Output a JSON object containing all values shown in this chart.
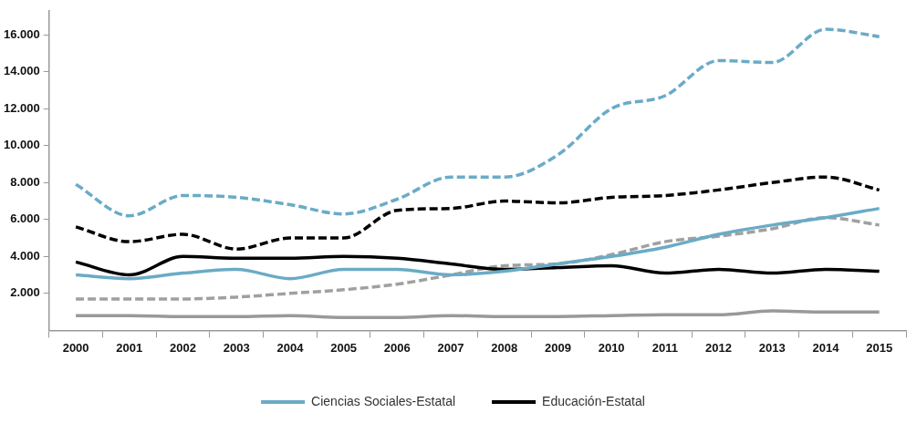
{
  "chart_data": {
    "type": "line",
    "categories": [
      "2000",
      "2001",
      "2002",
      "2003",
      "2004",
      "2005",
      "2006",
      "2007",
      "2008",
      "2009",
      "2010",
      "2011",
      "2012",
      "2013",
      "2014",
      "2015"
    ],
    "series": [
      {
        "color": "#6aabc6",
        "line_style": "dashed",
        "values": [
          7900,
          6200,
          7300,
          7200,
          6800,
          6300,
          7100,
          8300,
          8300,
          9500,
          12000,
          12700,
          14600,
          14500,
          16300,
          15900
        ]
      },
      {
        "color": "#000000",
        "line_style": "dashed",
        "values": [
          5600,
          4800,
          5200,
          4400,
          5000,
          5000,
          6500,
          6600,
          7000,
          6900,
          7200,
          7300,
          7600,
          8000,
          8300,
          7600
        ]
      },
      {
        "name": "Ciencias Sociales-Estatal",
        "color": "#6aabc6",
        "line_style": "solid",
        "values": [
          3000,
          2800,
          3100,
          3300,
          2800,
          3300,
          3300,
          3000,
          3200,
          3600,
          4000,
          4500,
          5200,
          5700,
          6100,
          6600
        ]
      },
      {
        "name": "Educación-Estatal",
        "color": "#000000",
        "line_style": "solid",
        "values": [
          3700,
          3000,
          4000,
          3900,
          3900,
          4000,
          3900,
          3600,
          3300,
          3400,
          3500,
          3100,
          3300,
          3100,
          3300,
          3200
        ]
      },
      {
        "color": "#a0a0a0",
        "line_style": "dashed",
        "values": [
          1700,
          1700,
          1700,
          1800,
          2000,
          2200,
          2500,
          3000,
          3500,
          3600,
          4100,
          4800,
          5100,
          5500,
          6100,
          5700
        ]
      },
      {
        "color": "#999999",
        "line_style": "solid",
        "values": [
          800,
          800,
          750,
          750,
          800,
          700,
          700,
          800,
          750,
          750,
          800,
          850,
          850,
          1050,
          1000,
          1000
        ]
      }
    ],
    "ylim": [
      0,
      17300
    ],
    "yticks": [
      {
        "value": 2000,
        "label": "2.000"
      },
      {
        "value": 4000,
        "label": "4.000"
      },
      {
        "value": 6000,
        "label": "6.000"
      },
      {
        "value": 8000,
        "label": "8.000"
      },
      {
        "value": 10000,
        "label": "10.000"
      },
      {
        "value": 12000,
        "label": "12.000"
      },
      {
        "value": 14000,
        "label": "14.000"
      },
      {
        "value": 16000,
        "label": "16.000"
      }
    ],
    "grid": false,
    "legend": "bottom",
    "marker": "none"
  }
}
